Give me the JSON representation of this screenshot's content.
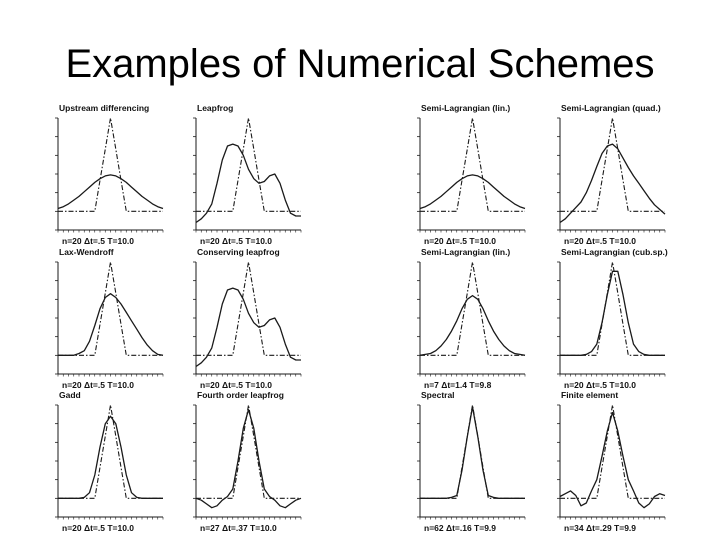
{
  "slide": {
    "title": "Examples of Numerical Schemes"
  },
  "chart_data": [
    {
      "type": "line",
      "title": "Upstream differencing",
      "params": "n=20 Δt=.5 T=10.0",
      "x": [
        0,
        1,
        2,
        3,
        4,
        5,
        6,
        7,
        8,
        9,
        10,
        11,
        12,
        13,
        14,
        15,
        16,
        17,
        18,
        19,
        20
      ],
      "ylim": [
        -0.2,
        1.0
      ],
      "series": [
        {
          "values": [
            0,
            0,
            0,
            0,
            0,
            0,
            0,
            0,
            0.333,
            0.667,
            1,
            0.667,
            0.333,
            0,
            0,
            0,
            0,
            0,
            0,
            0,
            0
          ]
        },
        {
          "values": [
            0.03,
            0.05,
            0.08,
            0.12,
            0.16,
            0.21,
            0.26,
            0.31,
            0.35,
            0.38,
            0.39,
            0.38,
            0.35,
            0.31,
            0.26,
            0.21,
            0.16,
            0.12,
            0.08,
            0.05,
            0.03
          ]
        }
      ]
    },
    {
      "type": "line",
      "title": "Leapfrog",
      "params": "n=20 Δt=.5 T=10.0",
      "x": [
        0,
        1,
        2,
        3,
        4,
        5,
        6,
        7,
        8,
        9,
        10,
        11,
        12,
        13,
        14,
        15,
        16,
        17,
        18,
        19,
        20
      ],
      "ylim": [
        -0.2,
        1.0
      ],
      "series": [
        {
          "values": [
            0,
            0,
            0,
            0,
            0,
            0,
            0,
            0,
            0.333,
            0.667,
            1,
            0.667,
            0.333,
            0,
            0,
            0,
            0,
            0,
            0,
            0,
            0
          ]
        },
        {
          "values": [
            -0.12,
            -0.08,
            -0.02,
            0.08,
            0.3,
            0.55,
            0.7,
            0.72,
            0.7,
            0.6,
            0.45,
            0.35,
            0.3,
            0.32,
            0.38,
            0.4,
            0.3,
            0.12,
            -0.02,
            -0.05,
            -0.05
          ]
        }
      ]
    },
    {
      "type": "line",
      "title": "Semi-Lagrangian (lin.)",
      "params": "n=20 Δt=.5 T=10.0",
      "x": [
        0,
        1,
        2,
        3,
        4,
        5,
        6,
        7,
        8,
        9,
        10,
        11,
        12,
        13,
        14,
        15,
        16,
        17,
        18,
        19,
        20
      ],
      "ylim": [
        -0.2,
        1.0
      ],
      "series": [
        {
          "values": [
            0,
            0,
            0,
            0,
            0,
            0,
            0,
            0,
            0.333,
            0.667,
            1,
            0.667,
            0.333,
            0,
            0,
            0,
            0,
            0,
            0,
            0,
            0
          ]
        },
        {
          "values": [
            0.03,
            0.05,
            0.08,
            0.12,
            0.16,
            0.21,
            0.26,
            0.31,
            0.35,
            0.38,
            0.39,
            0.38,
            0.35,
            0.31,
            0.26,
            0.21,
            0.16,
            0.12,
            0.08,
            0.05,
            0.03
          ]
        }
      ]
    },
    {
      "type": "line",
      "title": "Semi-Lagrangian (quad.)",
      "params": "n=20 Δt=.5 T=10.0",
      "x": [
        0,
        1,
        2,
        3,
        4,
        5,
        6,
        7,
        8,
        9,
        10,
        11,
        12,
        13,
        14,
        15,
        16,
        17,
        18,
        19,
        20
      ],
      "ylim": [
        -0.2,
        1.0
      ],
      "series": [
        {
          "values": [
            0,
            0,
            0,
            0,
            0,
            0,
            0,
            0,
            0.333,
            0.667,
            1,
            0.667,
            0.333,
            0,
            0,
            0,
            0,
            0,
            0,
            0,
            0
          ]
        },
        {
          "values": [
            -0.12,
            -0.08,
            -0.02,
            0.04,
            0.1,
            0.2,
            0.33,
            0.48,
            0.62,
            0.7,
            0.72,
            0.67,
            0.57,
            0.47,
            0.38,
            0.3,
            0.22,
            0.14,
            0.07,
            0.02,
            -0.03
          ]
        }
      ]
    },
    {
      "type": "line",
      "title": "Lax-Wendroff",
      "params": "n=20 Δt=.5 T=10.0",
      "x": [
        0,
        1,
        2,
        3,
        4,
        5,
        6,
        7,
        8,
        9,
        10,
        11,
        12,
        13,
        14,
        15,
        16,
        17,
        18,
        19,
        20
      ],
      "ylim": [
        -0.2,
        1.0
      ],
      "series": [
        {
          "values": [
            0,
            0,
            0,
            0,
            0,
            0,
            0,
            0,
            0.333,
            0.667,
            1,
            0.667,
            0.333,
            0,
            0,
            0,
            0,
            0,
            0,
            0,
            0
          ]
        },
        {
          "values": [
            0,
            0,
            0,
            0,
            0.02,
            0.05,
            0.15,
            0.32,
            0.5,
            0.62,
            0.66,
            0.62,
            0.55,
            0.46,
            0.37,
            0.28,
            0.19,
            0.11,
            0.05,
            0.01,
            0
          ]
        }
      ]
    },
    {
      "type": "line",
      "title": "Conserving leapfrog",
      "params": "n=20 Δt=.5 T=10.0",
      "x": [
        0,
        1,
        2,
        3,
        4,
        5,
        6,
        7,
        8,
        9,
        10,
        11,
        12,
        13,
        14,
        15,
        16,
        17,
        18,
        19,
        20
      ],
      "ylim": [
        -0.2,
        1.0
      ],
      "series": [
        {
          "values": [
            0,
            0,
            0,
            0,
            0,
            0,
            0,
            0,
            0.333,
            0.667,
            1,
            0.667,
            0.333,
            0,
            0,
            0,
            0,
            0,
            0,
            0,
            0
          ]
        },
        {
          "values": [
            -0.12,
            -0.08,
            -0.02,
            0.08,
            0.3,
            0.55,
            0.7,
            0.72,
            0.7,
            0.6,
            0.45,
            0.35,
            0.3,
            0.32,
            0.38,
            0.4,
            0.3,
            0.12,
            -0.02,
            -0.05,
            -0.05
          ]
        }
      ]
    },
    {
      "type": "line",
      "title": "Semi-Lagrangian (lin.)",
      "params": "n=7 Δt=1.4 T=9.8",
      "x": [
        0,
        1,
        2,
        3,
        4,
        5,
        6,
        7,
        8,
        9,
        10,
        11,
        12,
        13,
        14,
        15,
        16,
        17,
        18,
        19,
        20
      ],
      "ylim": [
        -0.2,
        1.0
      ],
      "series": [
        {
          "values": [
            0,
            0,
            0,
            0,
            0,
            0,
            0,
            0,
            0.333,
            0.667,
            1,
            0.667,
            0.333,
            0,
            0,
            0,
            0,
            0,
            0,
            0,
            0
          ]
        },
        {
          "values": [
            0,
            0.01,
            0.02,
            0.05,
            0.1,
            0.17,
            0.26,
            0.37,
            0.5,
            0.6,
            0.64,
            0.6,
            0.5,
            0.37,
            0.26,
            0.17,
            0.1,
            0.05,
            0.02,
            0.01,
            0
          ]
        }
      ]
    },
    {
      "type": "line",
      "title": "Semi-Lagrangian (cub.sp.)",
      "params": "n=20 Δt=.5 T=10.0",
      "x": [
        0,
        1,
        2,
        3,
        4,
        5,
        6,
        7,
        8,
        9,
        10,
        11,
        12,
        13,
        14,
        15,
        16,
        17,
        18,
        19,
        20
      ],
      "ylim": [
        -0.2,
        1.0
      ],
      "series": [
        {
          "values": [
            0,
            0,
            0,
            0,
            0,
            0,
            0,
            0,
            0.333,
            0.667,
            1,
            0.667,
            0.333,
            0,
            0,
            0,
            0,
            0,
            0,
            0,
            0
          ]
        },
        {
          "values": [
            0,
            0,
            0,
            0,
            0,
            0.01,
            0.04,
            0.12,
            0.35,
            0.65,
            0.9,
            0.9,
            0.65,
            0.35,
            0.12,
            0.04,
            0.01,
            0,
            0,
            0,
            0
          ]
        }
      ]
    },
    {
      "type": "line",
      "title": "Gadd",
      "params": "n=20 Δt=.5 T=10.0",
      "x": [
        0,
        1,
        2,
        3,
        4,
        5,
        6,
        7,
        8,
        9,
        10,
        11,
        12,
        13,
        14,
        15,
        16,
        17,
        18,
        19,
        20
      ],
      "ylim": [
        -0.2,
        1.0
      ],
      "series": [
        {
          "values": [
            0,
            0,
            0,
            0,
            0,
            0,
            0,
            0,
            0.333,
            0.667,
            1,
            0.667,
            0.333,
            0,
            0,
            0,
            0,
            0,
            0,
            0,
            0
          ]
        },
        {
          "values": [
            0,
            0,
            0,
            0,
            0,
            0.01,
            0.06,
            0.25,
            0.55,
            0.8,
            0.88,
            0.8,
            0.55,
            0.25,
            0.06,
            0.01,
            0,
            0,
            0,
            0,
            0
          ]
        }
      ]
    },
    {
      "type": "line",
      "title": "Fourth order leapfrog",
      "params": "n=27 Δt=.37 T=10.0",
      "x": [
        0,
        1,
        2,
        3,
        4,
        5,
        6,
        7,
        8,
        9,
        10,
        11,
        12,
        13,
        14,
        15,
        16,
        17,
        18,
        19,
        20
      ],
      "ylim": [
        -0.2,
        1.0
      ],
      "series": [
        {
          "values": [
            0,
            0,
            0,
            0,
            0,
            0,
            0,
            0,
            0.333,
            0.667,
            1,
            0.667,
            0.333,
            0,
            0,
            0,
            0,
            0,
            0,
            0,
            0
          ]
        },
        {
          "values": [
            0,
            -0.02,
            -0.06,
            -0.1,
            -0.08,
            -0.02,
            0.02,
            0.1,
            0.4,
            0.75,
            0.95,
            0.75,
            0.4,
            0.1,
            0.02,
            -0.02,
            -0.08,
            -0.1,
            -0.06,
            -0.02,
            0
          ]
        }
      ]
    },
    {
      "type": "line",
      "title": "Spectral",
      "params": "n=62 Δt=.16 T=9.9",
      "x": [
        0,
        1,
        2,
        3,
        4,
        5,
        6,
        7,
        8,
        9,
        10,
        11,
        12,
        13,
        14,
        15,
        16,
        17,
        18,
        19,
        20
      ],
      "ylim": [
        -0.2,
        1.0
      ],
      "series": [
        {
          "values": [
            0,
            0,
            0,
            0,
            0,
            0,
            0,
            0,
            0.333,
            0.667,
            1,
            0.667,
            0.333,
            0,
            0,
            0,
            0,
            0,
            0,
            0,
            0
          ]
        },
        {
          "values": [
            0,
            0,
            0,
            0,
            0,
            0,
            0.01,
            0.03,
            0.3,
            0.66,
            0.98,
            0.66,
            0.3,
            0.03,
            0.01,
            0,
            0,
            0,
            0,
            0,
            0
          ]
        }
      ]
    },
    {
      "type": "line",
      "title": "Finite element",
      "params": "n=34 Δt=.29 T=9.9",
      "x": [
        0,
        1,
        2,
        3,
        4,
        5,
        6,
        7,
        8,
        9,
        10,
        11,
        12,
        13,
        14,
        15,
        16,
        17,
        18,
        19,
        20
      ],
      "ylim": [
        -0.2,
        1.0
      ],
      "series": [
        {
          "values": [
            0,
            0,
            0,
            0,
            0,
            0,
            0,
            0,
            0.333,
            0.667,
            1,
            0.667,
            0.333,
            0,
            0,
            0,
            0,
            0,
            0,
            0,
            0
          ]
        },
        {
          "values": [
            0.02,
            0.05,
            0.08,
            0.03,
            -0.08,
            -0.05,
            0.08,
            0.2,
            0.45,
            0.72,
            0.92,
            0.72,
            0.45,
            0.2,
            0.08,
            -0.05,
            -0.1,
            -0.06,
            0.02,
            0.05,
            0.03
          ]
        }
      ]
    }
  ]
}
